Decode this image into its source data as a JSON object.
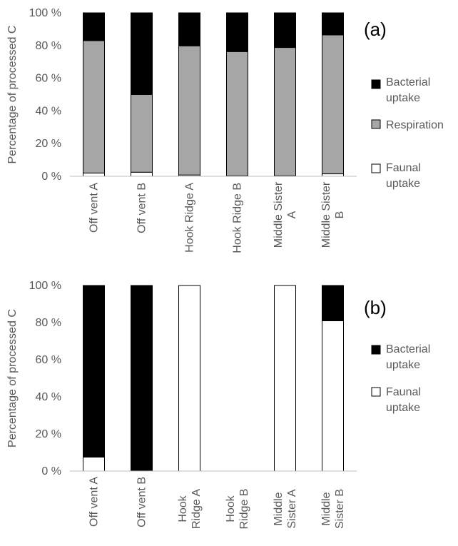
{
  "chart_data": [
    {
      "type": "bar",
      "stacked": true,
      "panel_label": "(a)",
      "ylabel": "Percentage of processed C",
      "y_ticks": [
        "0 %",
        "20 %",
        "40 %",
        "60 %",
        "80 %",
        "100 %"
      ],
      "ylim": [
        0,
        100
      ],
      "categories": [
        [
          "Off vent A"
        ],
        [
          "Off vent B"
        ],
        [
          "Hook Ridge A"
        ],
        [
          "Hook Ridge B"
        ],
        [
          "Middle Sister",
          "A"
        ],
        [
          "Middle Sister",
          "B"
        ]
      ],
      "series": [
        {
          "name": "Faunal uptake",
          "name_lines": [
            "Faunal",
            "uptake"
          ],
          "values": [
            2,
            2.5,
            0.8,
            0.3,
            0.3,
            1.5
          ]
        },
        {
          "name": "Respiration",
          "name_lines": [
            "Respiration"
          ],
          "values": [
            81,
            47.5,
            79,
            76,
            78.5,
            85
          ]
        },
        {
          "name": "Bacterial uptake",
          "name_lines": [
            "Bacterial",
            "uptake"
          ],
          "values": [
            17,
            50,
            20.2,
            23.7,
            21.2,
            13.5
          ]
        }
      ],
      "colors": {
        "Faunal uptake": "#ffffff",
        "Respiration": "#a6a6a6",
        "Bacterial uptake": "#000000"
      },
      "legend_position": "right"
    },
    {
      "type": "bar",
      "stacked": true,
      "panel_label": "(b)",
      "ylabel": "Percentage of processed C",
      "y_ticks": [
        "0 %",
        "20 %",
        "40 %",
        "60 %",
        "80 %",
        "100 %"
      ],
      "ylim": [
        0,
        100
      ],
      "categories": [
        [
          "Off vent A"
        ],
        [
          "Off vent B"
        ],
        [
          "Hook",
          "Ridge A"
        ],
        [
          "Hook",
          "Ridge B"
        ],
        [
          "Middle",
          "Sister A"
        ],
        [
          "Middle",
          "Sister B"
        ]
      ],
      "series": [
        {
          "name": "Faunal uptake",
          "name_lines": [
            "Faunal",
            "uptake"
          ],
          "values": [
            7.5,
            0,
            100,
            0,
            100,
            81
          ]
        },
        {
          "name": "Bacterial uptake",
          "name_lines": [
            "Bacterial",
            "uptake"
          ],
          "values": [
            92.5,
            100,
            0,
            0,
            0,
            19
          ]
        }
      ],
      "colors": {
        "Faunal uptake": "#ffffff",
        "Bacterial uptake": "#000000"
      },
      "legend_position": "right"
    }
  ]
}
